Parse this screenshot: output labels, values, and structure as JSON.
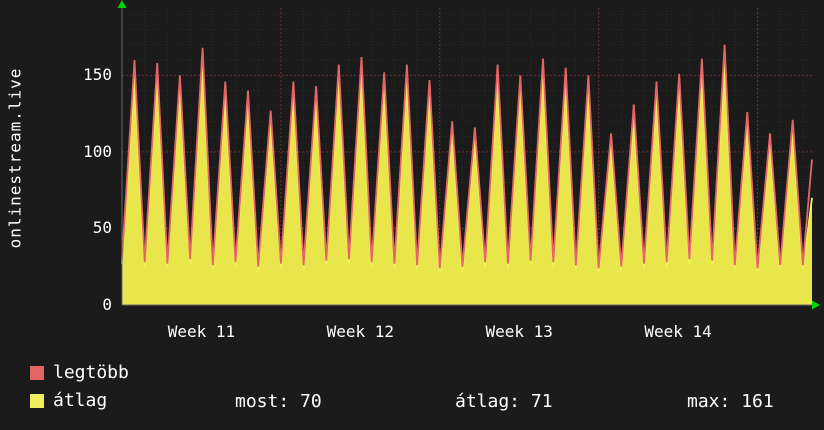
{
  "chart_data": {
    "type": "area",
    "title": "",
    "ylabel": "onlinestream.live",
    "ylim": [
      0,
      194
    ],
    "y_ticks": [
      0,
      50,
      100,
      150
    ],
    "x_tick_labels": [
      "Week 11",
      "Week 12",
      "Week 13",
      "Week 14"
    ],
    "week_boundaries_days": [
      7,
      14,
      21,
      28
    ],
    "total_days": 30.4,
    "grid": {
      "minor_color": "#2b2b2b",
      "major_color": "#6e2f2f",
      "axis_color": "#6a6a6a",
      "arrow_color": "#00d400"
    },
    "series": [
      {
        "name": "legtöbb",
        "type": "line",
        "color": "#e46565",
        "day_peaks": [
          160,
          158,
          150,
          168,
          146,
          140,
          127,
          146,
          143,
          157,
          162,
          152,
          157,
          147,
          120,
          116,
          157,
          150,
          161,
          155,
          150,
          112,
          131,
          146,
          151,
          161,
          170,
          126,
          112,
          121
        ],
        "day_troughs": [
          30,
          28,
          27,
          30,
          26,
          28,
          25,
          27,
          26,
          29,
          30,
          28,
          27,
          26,
          24,
          25,
          28,
          27,
          29,
          28,
          26,
          24,
          25,
          27,
          28,
          30,
          29,
          26,
          24,
          26
        ],
        "end_trough": 26,
        "end_value": 95
      },
      {
        "name": "átlag",
        "type": "area",
        "color": "#f2ef5e",
        "fill": "#e9e64c",
        "day_peaks": [
          150,
          148,
          141,
          158,
          137,
          131,
          119,
          137,
          134,
          147,
          152,
          143,
          147,
          138,
          112,
          108,
          147,
          141,
          151,
          146,
          141,
          105,
          122,
          137,
          141,
          151,
          159,
          118,
          105,
          113
        ],
        "day_troughs": [
          27,
          25,
          24,
          27,
          23,
          25,
          22,
          24,
          23,
          26,
          27,
          25,
          24,
          23,
          21,
          22,
          25,
          24,
          26,
          25,
          23,
          21,
          22,
          24,
          25,
          27,
          26,
          23,
          21,
          23
        ],
        "end_trough": 23,
        "end_value": 70
      }
    ],
    "stats": [
      {
        "label": "most:",
        "value": "70"
      },
      {
        "label": "átlag:",
        "value": "71"
      },
      {
        "label": "max:",
        "value": "161"
      }
    ]
  },
  "colors": {
    "background": "#1b1b1b",
    "text": "#ffffff"
  }
}
